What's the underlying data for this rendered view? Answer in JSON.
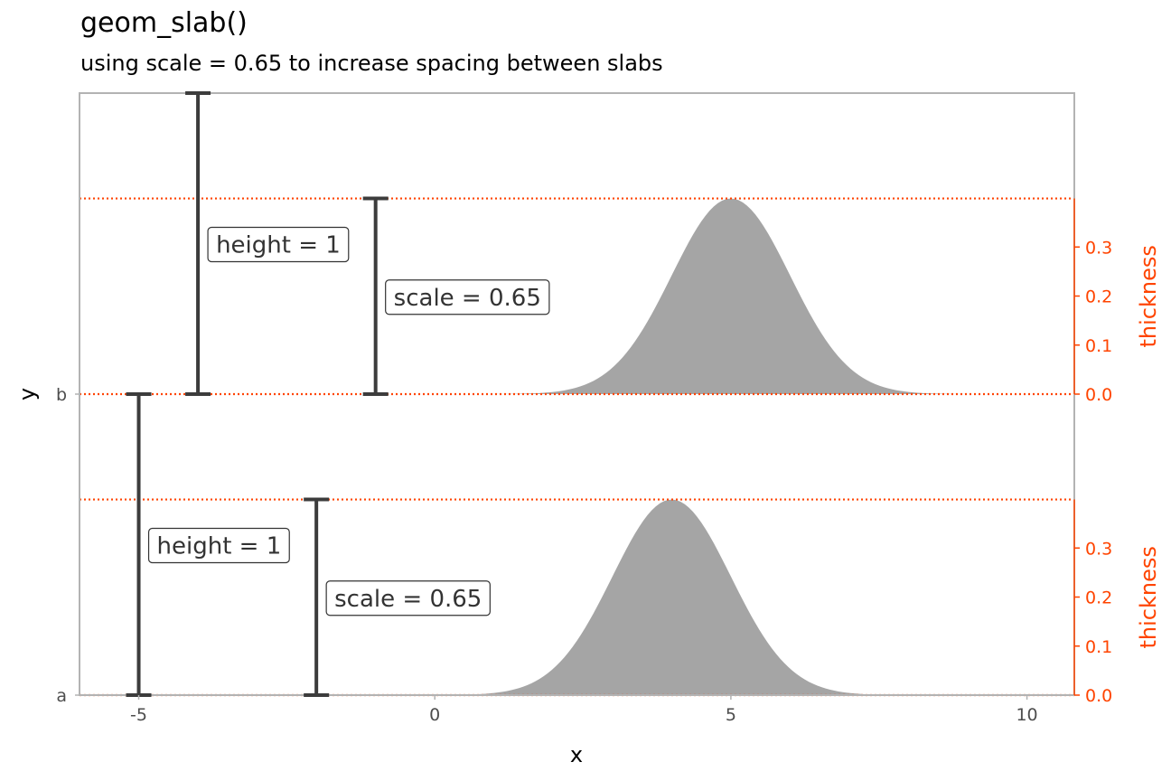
{
  "chart_data": {
    "type": "area",
    "title": "geom_slab()",
    "subtitle": "using scale = 0.65 to increase spacing between slabs",
    "xlabel": "x",
    "ylabel": "y",
    "xlim": [
      -6,
      10.8
    ],
    "x_ticks": [
      -5,
      0,
      5,
      10
    ],
    "y_categories": [
      "a",
      "b"
    ],
    "scale": 0.65,
    "secondary_axis": {
      "label": "thickness",
      "ticks": [
        "0.0",
        "0.1",
        "0.2",
        "0.3"
      ],
      "color": "#ff4400"
    },
    "slabs": [
      {
        "category": "a",
        "distribution": "normal",
        "mean": 4,
        "sd": 1,
        "peak_thickness": 0.399
      },
      {
        "category": "b",
        "distribution": "normal",
        "mean": 5,
        "sd": 1,
        "peak_thickness": 0.399
      }
    ],
    "annotations": [
      {
        "category": "a",
        "x": -5,
        "label": "height = 1",
        "spans": 1
      },
      {
        "category": "a",
        "x": -2,
        "label": "scale = 0.65",
        "spans": 0.65
      },
      {
        "category": "b",
        "x": -4,
        "label": "height = 1",
        "spans": 1
      },
      {
        "category": "b",
        "x": -1,
        "label": "scale = 0.65",
        "spans": 0.65
      }
    ],
    "colors": {
      "slab_fill": "#a5a5a5",
      "interval": "#3c3c3c",
      "guide_lines": "#ff4400",
      "panel_border": "#b3b3b3"
    }
  }
}
